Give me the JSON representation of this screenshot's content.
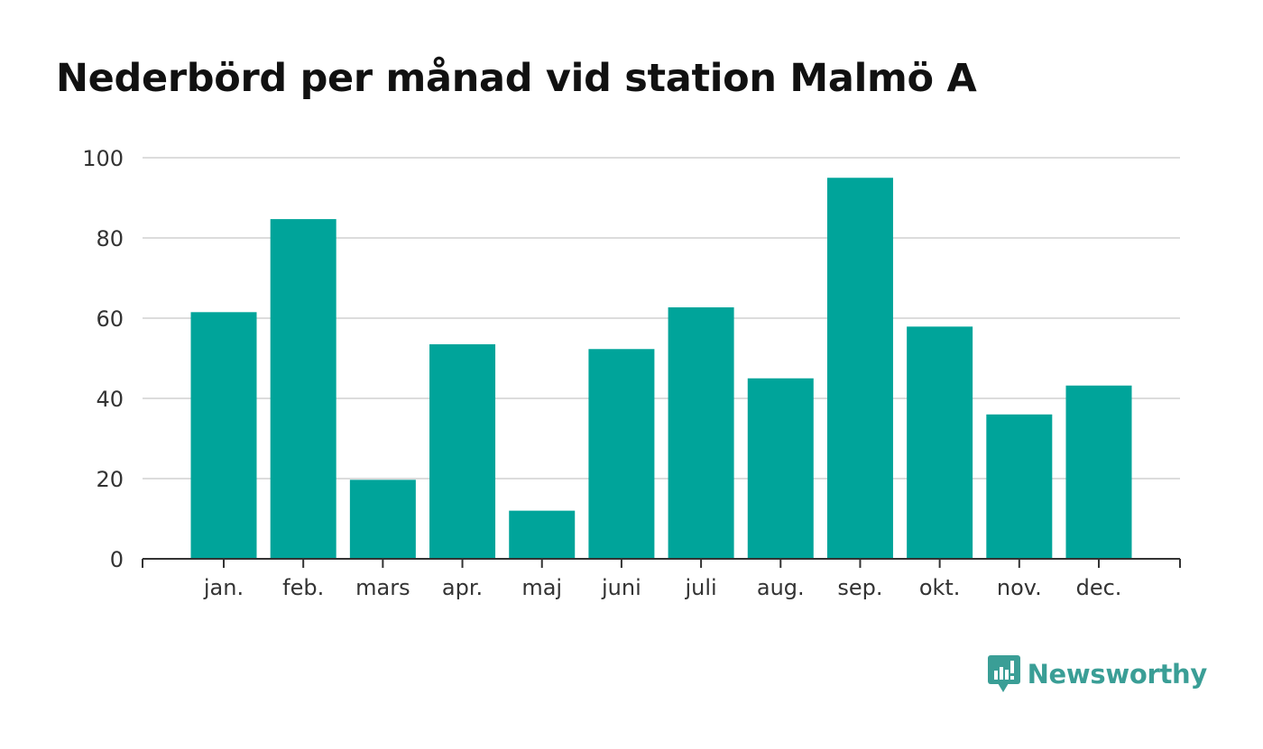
{
  "title": "Nederbörd per månad vid station Malmö A",
  "brand": {
    "name": "Newsworthy",
    "icon": "newsworthy-logo-icon",
    "color": "#3a9e96"
  },
  "colors": {
    "bar": "#00a49a",
    "grid": "#dcdcdc",
    "axis": "#333333",
    "text": "#333333"
  },
  "chart_data": {
    "type": "bar",
    "title": "Nederbörd per månad vid station Malmö A",
    "categories": [
      "jan.",
      "feb.",
      "mars",
      "apr.",
      "maj",
      "juni",
      "juli",
      "aug.",
      "sep.",
      "okt.",
      "nov.",
      "dec."
    ],
    "values": [
      61.5,
      84.7,
      19.7,
      53.5,
      12.0,
      52.3,
      62.7,
      45.0,
      95.0,
      57.9,
      36.0,
      43.2
    ],
    "yticks": [
      0,
      20,
      40,
      60,
      80,
      100
    ],
    "ylim": [
      0,
      100
    ],
    "xlabel": "",
    "ylabel": "",
    "grid": true,
    "legend": "none"
  }
}
